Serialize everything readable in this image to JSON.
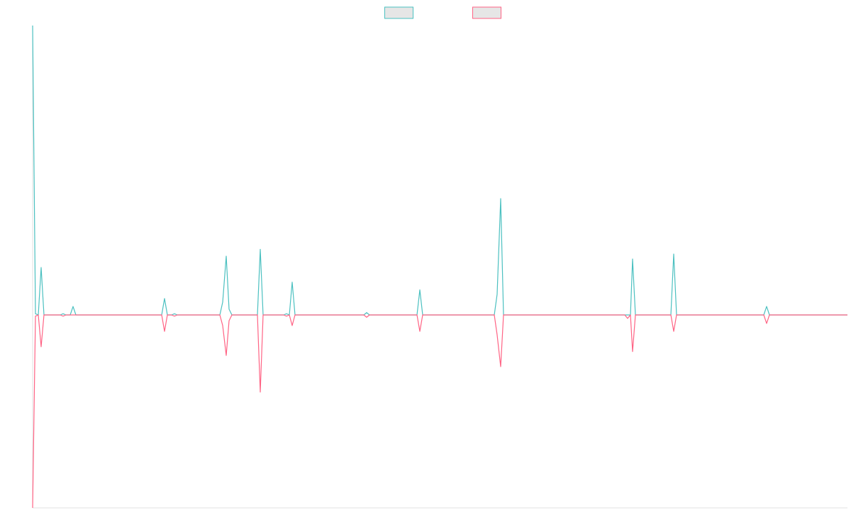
{
  "chart_data": {
    "type": "line",
    "x": [
      0,
      4,
      8,
      12,
      16,
      39,
      43,
      47,
      53,
      57,
      61,
      182,
      186,
      190,
      196,
      200,
      204,
      264,
      268,
      273,
      277,
      281,
      317,
      321,
      325,
      354,
      358,
      362,
      366,
      370,
      467,
      471,
      475,
      542,
      546,
      550,
      651,
      655,
      660,
      664,
      835,
      839,
      843,
      846,
      850,
      900,
      904,
      908,
      1031,
      1035,
      1039,
      1149
    ],
    "series": [
      {
        "color": "#4bc0c0",
        "values": [
          150,
          0.6,
          0,
          24.6,
          0,
          0,
          0.6,
          0,
          0,
          4.4,
          0,
          0,
          8.5,
          0,
          0,
          0.6,
          0,
          0,
          6.6,
          30.5,
          3,
          0,
          0,
          34,
          0,
          0,
          0.6,
          0,
          17,
          0,
          0,
          1.2,
          0,
          0,
          13,
          0,
          0,
          10.7,
          60.3,
          0,
          0,
          0,
          0,
          29,
          0,
          0,
          31.6,
          0,
          0,
          4.4,
          0,
          0
        ]
      },
      {
        "color": "#ff6384",
        "values": [
          -100,
          -0.6,
          0,
          -16.5,
          0,
          0,
          -0.6,
          0,
          0,
          0,
          0,
          0,
          -8.5,
          0,
          0,
          -0.6,
          0,
          0,
          -5.5,
          -21,
          -3,
          0,
          0,
          -40,
          0,
          0,
          -0.6,
          0,
          -5.5,
          0,
          0,
          -1.2,
          0,
          0,
          -8.5,
          0,
          0,
          -10.3,
          -26.8,
          0,
          0,
          -1.8,
          0,
          -19,
          0,
          0,
          -8.5,
          0,
          0,
          -4.4,
          0,
          0
        ]
      }
    ],
    "xlim": [
      0,
      1149
    ],
    "ylim": [
      -100,
      150
    ],
    "legend": "top"
  }
}
